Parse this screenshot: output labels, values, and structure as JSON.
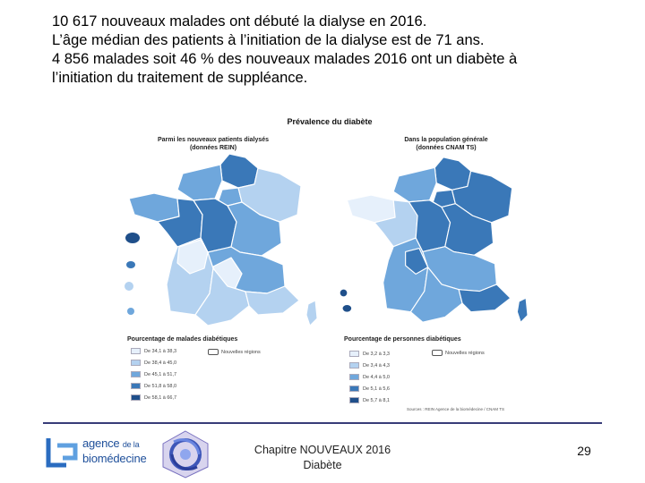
{
  "intro": {
    "line1": "10 617 nouveaux malades ont débuté la dialyse en 2016.",
    "line2": "L’âge médian des patients à l’initiation de la dialyse est de 71 ans.",
    "line3": "4 856 malades soit 46 % des nouveaux malades 2016 ont un diabète à",
    "line4": "l’initiation du traitement de suppléance."
  },
  "figure": {
    "title": "Prévalence du diabète",
    "left_map": {
      "subtitle_line1": "Parmi les nouveaux patients dialysés",
      "subtitle_line2": "(données REIN)",
      "legend_title": "Pourcentage de malades diabétiques",
      "legend_items": [
        "De 34,1 à 38,3",
        "De 38,4 à 45,0",
        "De 45,1 à 51,7",
        "De 51,8 à 58,0",
        "De 58,1 à 66,7"
      ],
      "new_regions_label": "Nouvelles régions"
    },
    "right_map": {
      "subtitle_line1": "Dans la population générale",
      "subtitle_line2": "(données CNAM TS)",
      "legend_title": "Pourcentage de personnes diabétiques",
      "legend_items": [
        "De 3,2 à 3,3",
        "De 3,4 à 4,3",
        "De 4,4 à 5,0",
        "De 5,1 à 5,6",
        "De 5,7 à 8,1"
      ],
      "new_regions_label": "Nouvelles régions"
    },
    "sources": "Sources : REIN Agence de la biomédecine / CNAM TS",
    "legend_colors": [
      "#e6f0fb",
      "#b4d2f0",
      "#6fa7dc",
      "#3a78b8",
      "#1f4f8a"
    ]
  },
  "footer": {
    "logo_line1": "agence",
    "logo_line1_small": "de la",
    "logo_line2": "biomédecine",
    "center_line1": "Chapitre NOUVEAUX 2016",
    "center_line2": "Diabète",
    "page_number": "29"
  }
}
